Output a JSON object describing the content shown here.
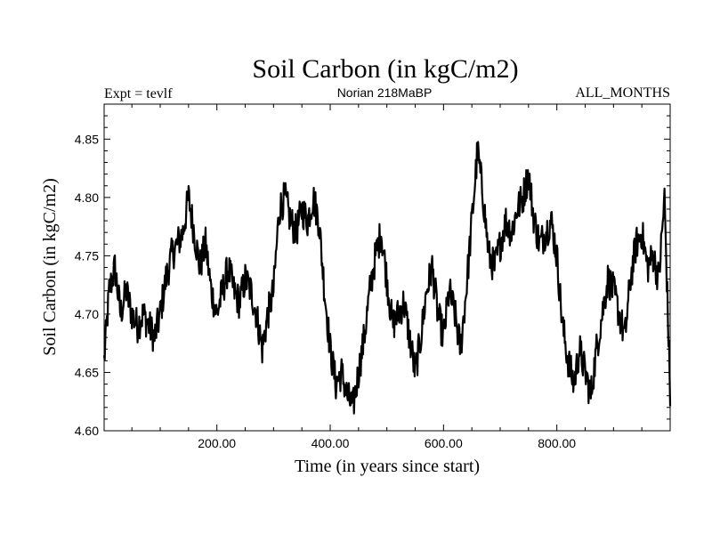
{
  "chart_data": {
    "type": "line",
    "title": "Soil Carbon (in kgC/m2)",
    "subtitle": "Norian 218MaBP",
    "left_label": "Expt = tevlf",
    "right_label": "ALL_MONTHS",
    "xlabel": "Time (in years since start)",
    "ylabel": "Soil Carbon (in kgC/m2)",
    "xlim": [
      1,
      1000
    ],
    "ylim": [
      4.6,
      4.88
    ],
    "xticks": [
      200,
      400,
      600,
      800
    ],
    "xtick_labels": [
      "200.00",
      "400.00",
      "600.00",
      "800.00"
    ],
    "yticks": [
      4.6,
      4.65,
      4.7,
      4.75,
      4.8,
      4.85
    ],
    "ytick_labels": [
      "4.60",
      "4.65",
      "4.70",
      "4.75",
      "4.80",
      "4.85"
    ],
    "grid": false,
    "line_color": "#000000",
    "series": [
      {
        "name": "",
        "x": [
          1,
          10,
          20,
          30,
          40,
          50,
          60,
          70,
          80,
          90,
          100,
          110,
          120,
          130,
          140,
          150,
          160,
          170,
          180,
          190,
          200,
          210,
          220,
          230,
          240,
          250,
          260,
          270,
          280,
          290,
          300,
          310,
          320,
          330,
          340,
          350,
          360,
          370,
          380,
          390,
          400,
          410,
          420,
          430,
          440,
          450,
          460,
          470,
          480,
          490,
          500,
          510,
          520,
          530,
          540,
          550,
          560,
          570,
          580,
          590,
          600,
          610,
          620,
          630,
          640,
          650,
          660,
          670,
          680,
          690,
          700,
          710,
          720,
          730,
          740,
          750,
          760,
          770,
          780,
          790,
          800,
          810,
          820,
          830,
          840,
          850,
          860,
          870,
          880,
          890,
          900,
          910,
          920,
          930,
          940,
          950,
          960,
          970,
          980,
          990,
          1000
        ],
        "values": [
          4.66,
          4.72,
          4.74,
          4.7,
          4.72,
          4.7,
          4.69,
          4.7,
          4.69,
          4.68,
          4.7,
          4.73,
          4.75,
          4.76,
          4.77,
          4.8,
          4.77,
          4.74,
          4.76,
          4.72,
          4.7,
          4.72,
          4.74,
          4.72,
          4.71,
          4.73,
          4.72,
          4.7,
          4.67,
          4.7,
          4.72,
          4.79,
          4.8,
          4.78,
          4.77,
          4.79,
          4.78,
          4.8,
          4.78,
          4.72,
          4.67,
          4.64,
          4.65,
          4.63,
          4.62,
          4.65,
          4.68,
          4.72,
          4.75,
          4.77,
          4.73,
          4.69,
          4.7,
          4.71,
          4.68,
          4.65,
          4.68,
          4.72,
          4.74,
          4.7,
          4.68,
          4.72,
          4.7,
          4.67,
          4.72,
          4.78,
          4.84,
          4.8,
          4.75,
          4.74,
          4.76,
          4.78,
          4.77,
          4.79,
          4.8,
          4.82,
          4.78,
          4.76,
          4.77,
          4.78,
          4.75,
          4.69,
          4.66,
          4.64,
          4.67,
          4.65,
          4.63,
          4.67,
          4.7,
          4.73,
          4.72,
          4.7,
          4.68,
          4.73,
          4.76,
          4.77,
          4.74,
          4.75,
          4.73,
          4.8,
          4.63
        ]
      }
    ]
  }
}
